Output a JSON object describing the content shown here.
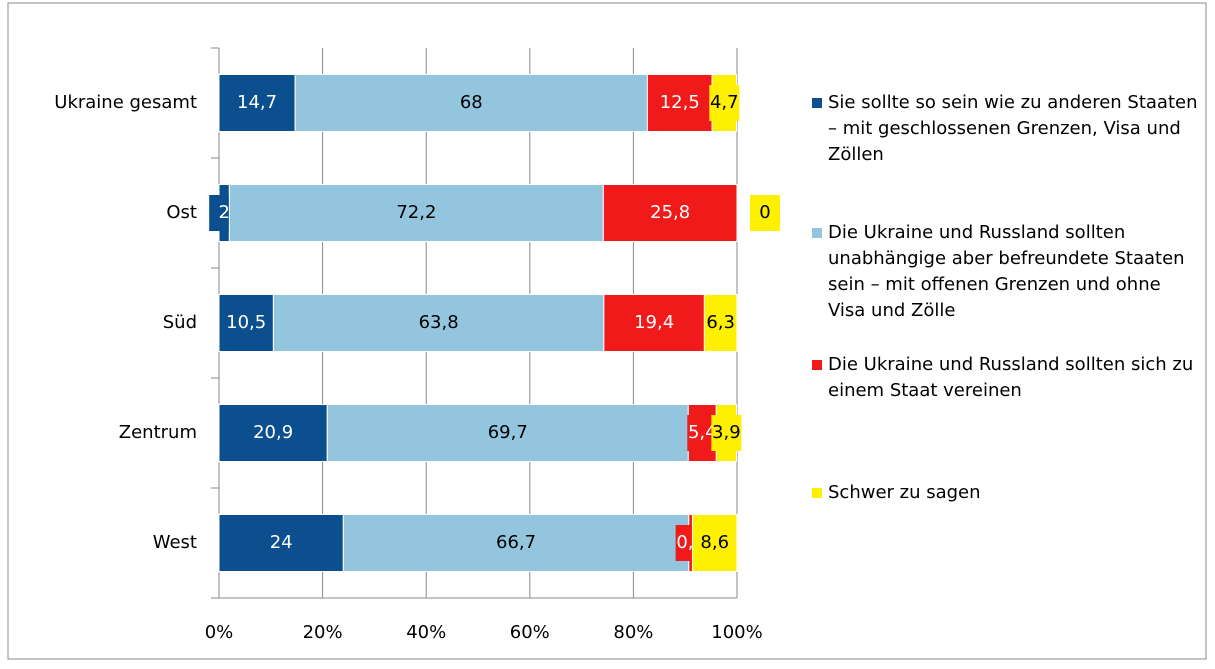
{
  "chart_data": {
    "type": "stacked_barh",
    "categories": [
      "Ukraine gesamt",
      "Ost",
      "Süd",
      "Zentrum",
      "West"
    ],
    "series": [
      {
        "name": "Sie sollte so sein wie zu anderen Staaten – mit geschlossenen Grenzen, Visa und Zöllen",
        "color": "#0b4f8f",
        "values": [
          14.7,
          2,
          10.5,
          20.9,
          24
        ],
        "value_labels": [
          "14,7",
          "2",
          "10,5",
          "20,9",
          "24"
        ]
      },
      {
        "name": "Die Ukraine und Russland sollten unabhängige aber befreundete Staaten sein – mit offenen Grenzen und ohne Visa und Zölle",
        "color": "#93c6de",
        "values": [
          68,
          72.2,
          63.8,
          69.7,
          66.7
        ],
        "value_labels": [
          "68",
          "72,2",
          "63,8",
          "69,7",
          "66,7"
        ]
      },
      {
        "name": "Die Ukraine und Russland sollten sich zu einem Staat vereinen",
        "color": "#f01a1a",
        "values": [
          12.5,
          25.8,
          19.4,
          5.4,
          0.7
        ],
        "value_labels": [
          "12,5",
          "25,8",
          "19,4",
          "5,4",
          "0,7"
        ]
      },
      {
        "name": "Schwer zu sagen",
        "color": "#fff000",
        "values": [
          4.7,
          0,
          6.3,
          3.9,
          8.6
        ],
        "value_labels": [
          "4,7",
          "0",
          "6,3",
          "3,9",
          "8,6"
        ]
      }
    ],
    "xlim": [
      0,
      100
    ],
    "xticks": [
      {
        "value": 0,
        "label": "0%"
      },
      {
        "value": 20,
        "label": "20%"
      },
      {
        "value": 40,
        "label": "40%"
      },
      {
        "value": 60,
        "label": "60%"
      },
      {
        "value": 80,
        "label": "80%"
      },
      {
        "value": 100,
        "label": "100%"
      }
    ],
    "grid": true,
    "legend": "right"
  }
}
